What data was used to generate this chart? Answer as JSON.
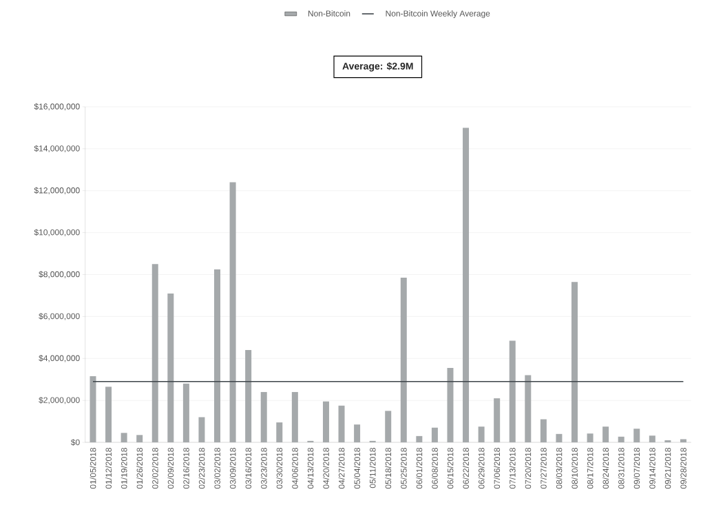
{
  "chart_data": {
    "type": "bar",
    "categories": [
      "01/05/2018",
      "01/12/2018",
      "01/19/2018",
      "01/26/2018",
      "02/02/2018",
      "02/09/2018",
      "02/16/2018",
      "02/23/2018",
      "03/02/2018",
      "03/09/2018",
      "03/16/2018",
      "03/23/2018",
      "03/30/2018",
      "04/06/2018",
      "04/13/2018",
      "04/20/2018",
      "04/27/2018",
      "05/04/2018",
      "05/11/2018",
      "05/18/2018",
      "05/25/2018",
      "06/01/2018",
      "06/08/2018",
      "06/15/2018",
      "06/22/2018",
      "06/29/2018",
      "07/06/2018",
      "07/13/2018",
      "07/20/2018",
      "07/27/2018",
      "08/03/2018",
      "08/10/2018",
      "08/17/2018",
      "08/24/2018",
      "08/31/2018",
      "09/07/2018",
      "09/14/2018",
      "09/21/2018",
      "09/28/2018"
    ],
    "series": [
      {
        "name": "Non-Bitcoin",
        "color": "#a5a9ab",
        "values": [
          3150000,
          2650000,
          450000,
          350000,
          8500000,
          7100000,
          2800000,
          1200000,
          8250000,
          12400000,
          4400000,
          2400000,
          950000,
          2400000,
          70000,
          1950000,
          1750000,
          850000,
          70000,
          1500000,
          7850000,
          300000,
          700000,
          3550000,
          15000000,
          750000,
          2100000,
          4850000,
          3200000,
          1100000,
          400000,
          7650000,
          420000,
          750000,
          270000,
          650000,
          320000,
          100000,
          150000
        ]
      },
      {
        "name": "Non-Bitcoin Weekly Average",
        "type": "line",
        "color": "#3d4449",
        "values": [
          2900000,
          2900000,
          2900000,
          2900000,
          2900000,
          2900000,
          2900000,
          2900000,
          2900000,
          2900000,
          2900000,
          2900000,
          2900000,
          2900000,
          2900000,
          2900000,
          2900000,
          2900000,
          2900000,
          2900000,
          2900000,
          2900000,
          2900000,
          2900000,
          2900000,
          2900000,
          2900000,
          2900000,
          2900000,
          2900000,
          2900000,
          2900000,
          2900000,
          2900000,
          2900000,
          2900000,
          2900000,
          2900000,
          2900000
        ]
      }
    ],
    "annotations": [
      "Average: $2.9M"
    ],
    "ylim": [
      0,
      16000000
    ],
    "yticks": [
      {
        "value": 0,
        "label": "$0"
      },
      {
        "value": 2000000,
        "label": "$2,000,000"
      },
      {
        "value": 4000000,
        "label": "$4,000,000"
      },
      {
        "value": 6000000,
        "label": "$6,000,000"
      },
      {
        "value": 8000000,
        "label": "$8,000,000"
      },
      {
        "value": 10000000,
        "label": "$10,000,000"
      },
      {
        "value": 12000000,
        "label": "$12,000,000"
      },
      {
        "value": 14000000,
        "label": "$14,000,000"
      },
      {
        "value": 16000000,
        "label": "$16,000,000"
      }
    ],
    "grid": "y",
    "legend": "top"
  }
}
